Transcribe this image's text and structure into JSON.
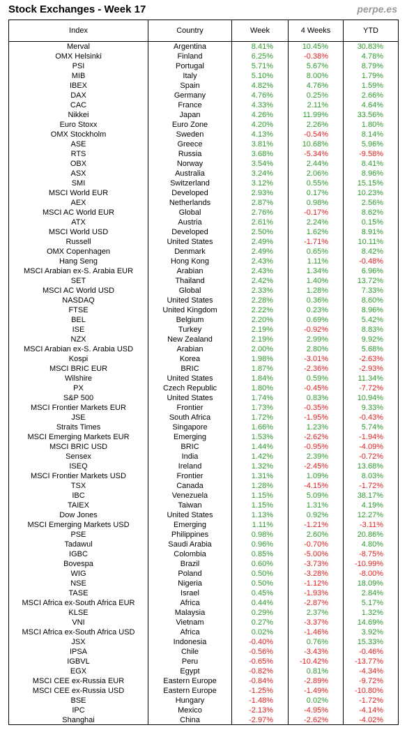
{
  "header": {
    "title": "Stock Exchanges - Week 17",
    "source": "perpe.es"
  },
  "table": {
    "columns": [
      "Index",
      "Country",
      "Week",
      "4 Weeks",
      "YTD"
    ],
    "positive_color": "#2e9a2e",
    "negative_color": "#e01e1e",
    "rows": [
      [
        "Merval",
        "Argentina",
        "8.41%",
        "10.45%",
        "30.83%"
      ],
      [
        "OMX Helsinki",
        "Finland",
        "6.25%",
        "-0.38%",
        "4.78%"
      ],
      [
        "PSI",
        "Portugal",
        "5.71%",
        "5.67%",
        "8.79%"
      ],
      [
        "MIB",
        "Italy",
        "5.10%",
        "8.00%",
        "1.79%"
      ],
      [
        "IBEX",
        "Spain",
        "4.82%",
        "4.76%",
        "1.59%"
      ],
      [
        "DAX",
        "Germany",
        "4.76%",
        "0.25%",
        "2.66%"
      ],
      [
        "CAC",
        "France",
        "4.33%",
        "2.11%",
        "4.64%"
      ],
      [
        "Nikkei",
        "Japan",
        "4.26%",
        "11.99%",
        "33.56%"
      ],
      [
        "Euro Stoxx",
        "Euro Zone",
        "4.20%",
        "2.26%",
        "1.80%"
      ],
      [
        "OMX Stockholm",
        "Sweden",
        "4.13%",
        "-0.54%",
        "8.14%"
      ],
      [
        "ASE",
        "Greece",
        "3.81%",
        "10.68%",
        "5.96%"
      ],
      [
        "RTS",
        "Russia",
        "3.68%",
        "-5.34%",
        "-9.58%"
      ],
      [
        "OBX",
        "Norway",
        "3.54%",
        "2.44%",
        "8.41%"
      ],
      [
        "ASX",
        "Australia",
        "3.24%",
        "2.06%",
        "8.96%"
      ],
      [
        "SMI",
        "Switzerland",
        "3.12%",
        "0.55%",
        "15.15%"
      ],
      [
        "MSCI World EUR",
        "Developed",
        "2.93%",
        "0.17%",
        "10.23%"
      ],
      [
        "AEX",
        "Netherlands",
        "2.87%",
        "0.98%",
        "2.56%"
      ],
      [
        "MSCI AC World EUR",
        "Global",
        "2.76%",
        "-0.17%",
        "8.62%"
      ],
      [
        "ATX",
        "Austria",
        "2.61%",
        "2.24%",
        "0.15%"
      ],
      [
        "MSCI World USD",
        "Developed",
        "2.50%",
        "1.62%",
        "8.91%"
      ],
      [
        "Russell",
        "United States",
        "2.49%",
        "-1.71%",
        "10.11%"
      ],
      [
        "OMX Copenhagen",
        "Denmark",
        "2.49%",
        "0.65%",
        "8.42%"
      ],
      [
        "Hang Seng",
        "Hong Kong",
        "2.43%",
        "1.11%",
        "-0.48%"
      ],
      [
        "MSCI Arabian ex-S. Arabia EUR",
        "Arabian",
        "2.43%",
        "1.34%",
        "6.96%"
      ],
      [
        "SET",
        "Thailand",
        "2.42%",
        "1.40%",
        "13.72%"
      ],
      [
        "MSCI AC World USD",
        "Global",
        "2.33%",
        "1.28%",
        "7.33%"
      ],
      [
        "NASDAQ",
        "United States",
        "2.28%",
        "0.36%",
        "8.60%"
      ],
      [
        "FTSE",
        "United Kingdom",
        "2.22%",
        "0.23%",
        "8.96%"
      ],
      [
        "BEL",
        "Belgium",
        "2.20%",
        "0.69%",
        "5.42%"
      ],
      [
        "ISE",
        "Turkey",
        "2.19%",
        "-0.92%",
        "8.83%"
      ],
      [
        "NZX",
        "New Zealand",
        "2.19%",
        "2.99%",
        "9.92%"
      ],
      [
        "MSCI Arabian ex-S. Arabia USD",
        "Arabian",
        "2.00%",
        "2.80%",
        "5.68%"
      ],
      [
        "Kospi",
        "Korea",
        "1.98%",
        "-3.01%",
        "-2.63%"
      ],
      [
        "MSCI BRIC EUR",
        "BRIC",
        "1.87%",
        "-2.36%",
        "-2.93%"
      ],
      [
        "Wilshire",
        "United States",
        "1.84%",
        "0.59%",
        "11.34%"
      ],
      [
        "PX",
        "Czech Republic",
        "1.80%",
        "-0.45%",
        "-7.72%"
      ],
      [
        "S&P 500",
        "United States",
        "1.74%",
        "0.83%",
        "10.94%"
      ],
      [
        "MSCI Frontier Markets EUR",
        "Frontier",
        "1.73%",
        "-0.35%",
        "9.33%"
      ],
      [
        "JSE",
        "South Africa",
        "1.72%",
        "-1.95%",
        "-0.43%"
      ],
      [
        "Straits Times",
        "Singapore",
        "1.66%",
        "1.23%",
        "5.74%"
      ],
      [
        "MSCI Emerging Markets EUR",
        "Emerging",
        "1.53%",
        "-2.62%",
        "-1.94%"
      ],
      [
        "MSCI BRIC USD",
        "BRIC",
        "1.44%",
        "-0.95%",
        "-4.09%"
      ],
      [
        "Sensex",
        "India",
        "1.42%",
        "2.39%",
        "-0.72%"
      ],
      [
        "ISEQ",
        "Ireland",
        "1.32%",
        "-2.45%",
        "13.68%"
      ],
      [
        "MSCI Frontier Markets USD",
        "Frontier",
        "1.31%",
        "1.09%",
        "8.03%"
      ],
      [
        "TSX",
        "Canada",
        "1.28%",
        "-4.15%",
        "-1.72%"
      ],
      [
        "IBC",
        "Venezuela",
        "1.15%",
        "5.09%",
        "38.17%"
      ],
      [
        "TAIEX",
        "Taiwan",
        "1.15%",
        "1.31%",
        "4.19%"
      ],
      [
        "Dow Jones",
        "United States",
        "1.13%",
        "0.92%",
        "12.27%"
      ],
      [
        "MSCI Emerging Markets USD",
        "Emerging",
        "1.11%",
        "-1.21%",
        "-3.11%"
      ],
      [
        "PSE",
        "Philippines",
        "0.98%",
        "2.60%",
        "20.86%"
      ],
      [
        "Tadawul",
        "Saudi Arabia",
        "0.96%",
        "-0.70%",
        "4.80%"
      ],
      [
        "IGBC",
        "Colombia",
        "0.85%",
        "-5.00%",
        "-8.75%"
      ],
      [
        "Bovespa",
        "Brazil",
        "0.60%",
        "-3.73%",
        "-10.99%"
      ],
      [
        "WIG",
        "Poland",
        "0.50%",
        "-3.28%",
        "-8.00%"
      ],
      [
        "NSE",
        "Nigeria",
        "0.50%",
        "-1.12%",
        "18.09%"
      ],
      [
        "TASE",
        "Israel",
        "0.45%",
        "-1.93%",
        "2.84%"
      ],
      [
        "MSCI Africa ex-South Africa EUR",
        "Africa",
        "0.44%",
        "-2.87%",
        "5.17%"
      ],
      [
        "KLSE",
        "Malaysia",
        "0.29%",
        "2.37%",
        "1.32%"
      ],
      [
        "VNI",
        "Vietnam",
        "0.27%",
        "-3.37%",
        "14.69%"
      ],
      [
        "MSCI Africa ex-South Africa USD",
        "Africa",
        "0.02%",
        "-1.46%",
        "3.92%"
      ],
      [
        "JSX",
        "Indonesia",
        "-0.40%",
        "0.76%",
        "15.33%"
      ],
      [
        "IPSA",
        "Chile",
        "-0.56%",
        "-3.43%",
        "-0.46%"
      ],
      [
        "IGBVL",
        "Peru",
        "-0.65%",
        "-10.42%",
        "-13.77%"
      ],
      [
        "EGX",
        "Egypt",
        "-0.82%",
        "0.81%",
        "-4.34%"
      ],
      [
        "MSCI CEE ex-Russia EUR",
        "Eastern Europe",
        "-0.84%",
        "-2.89%",
        "-9.72%"
      ],
      [
        "MSCI CEE ex-Russia USD",
        "Eastern Europe",
        "-1.25%",
        "-1.49%",
        "-10.80%"
      ],
      [
        "BSE",
        "Hungary",
        "-1.48%",
        "0.02%",
        "-1.72%"
      ],
      [
        "IPC",
        "Mexico",
        "-2.13%",
        "-4.95%",
        "-4.14%"
      ],
      [
        "Shanghai",
        "China",
        "-2.97%",
        "-2.62%",
        "-4.02%"
      ]
    ]
  }
}
